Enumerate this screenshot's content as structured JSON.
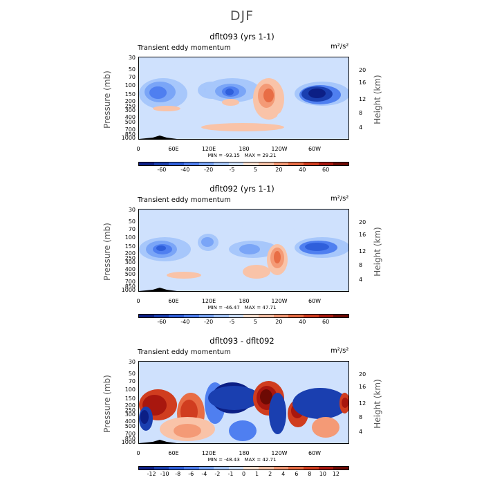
{
  "page_title": "DJF",
  "colors": {
    "diverging": [
      "#0c1f85",
      "#1a3fb0",
      "#2f5fdb",
      "#4f7ff0",
      "#7aa5f7",
      "#a7c7fb",
      "#cfe1fd",
      "#fde3d3",
      "#f9c3a8",
      "#f49a76",
      "#e86d45",
      "#d03d1f",
      "#a8170e",
      "#6d0a04"
    ]
  },
  "chart_data": [
    {
      "type": "heatmap",
      "title": "dflt093 (yrs 1-1)",
      "subtitle": "Transient eddy momentum",
      "units": "m²/s²",
      "xlabel": "",
      "ylabel": "Pressure (mb)",
      "y2label": "Height (km)",
      "x_ticks": [
        "0",
        "60E",
        "120E",
        "180",
        "120W",
        "60W"
      ],
      "pressure_ticks": [
        "30",
        "50",
        "70",
        "100",
        "150",
        "200",
        "250",
        "300",
        "400",
        "500",
        "700",
        "850",
        "1000"
      ],
      "height_ticks": [
        "20",
        "16",
        "12",
        "8",
        "4"
      ],
      "min_label": "MIN = -93.15",
      "max_label": "MAX = 29.21",
      "min": -93.15,
      "max": 29.21,
      "colorbar_labels": [
        "-60",
        "-40",
        "-20",
        "-5",
        "5",
        "20",
        "40",
        "60"
      ]
    },
    {
      "type": "heatmap",
      "title": "dflt092 (yrs 1-1)",
      "subtitle": "Transient eddy momentum",
      "units": "m²/s²",
      "xlabel": "",
      "ylabel": "Pressure (mb)",
      "y2label": "Height (km)",
      "x_ticks": [
        "0",
        "60E",
        "120E",
        "180",
        "120W",
        "60W"
      ],
      "pressure_ticks": [
        "30",
        "50",
        "70",
        "100",
        "150",
        "200",
        "250",
        "300",
        "400",
        "500",
        "700",
        "850",
        "1000"
      ],
      "height_ticks": [
        "20",
        "16",
        "12",
        "8",
        "4"
      ],
      "min_label": "MIN = -46.47",
      "max_label": "MAX = 47.71",
      "min": -46.47,
      "max": 47.71,
      "colorbar_labels": [
        "-60",
        "-40",
        "-20",
        "-5",
        "5",
        "20",
        "40",
        "60"
      ]
    },
    {
      "type": "heatmap",
      "title": "dflt093 - dflt092",
      "subtitle": "Transient eddy momentum",
      "units": "m²/s²",
      "xlabel": "",
      "ylabel": "Pressure (mb)",
      "y2label": "Height (km)",
      "x_ticks": [
        "0",
        "60E",
        "120E",
        "180",
        "120W",
        "60W"
      ],
      "pressure_ticks": [
        "30",
        "50",
        "70",
        "100",
        "150",
        "200",
        "250",
        "300",
        "400",
        "500",
        "700",
        "850",
        "1000"
      ],
      "height_ticks": [
        "20",
        "16",
        "12",
        "8",
        "4"
      ],
      "min_label": "MIN = -48.43",
      "max_label": "MAX = 42.71",
      "min": -48.43,
      "max": 42.71,
      "colorbar_labels": [
        "-12",
        "-10",
        "-8",
        "-6",
        "-4",
        "-2",
        "-1",
        "0",
        "1",
        "2",
        "4",
        "6",
        "8",
        "10",
        "12"
      ]
    }
  ]
}
